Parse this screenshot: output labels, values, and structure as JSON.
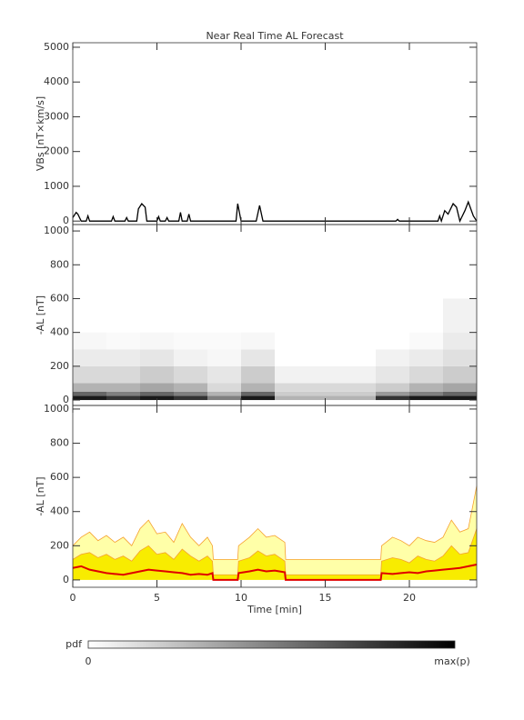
{
  "chart_data": [
    {
      "type": "line",
      "title": "Near Real Time AL Forecast",
      "y_label": "VBs [nT×km/s]",
      "xlim": [
        0,
        24
      ],
      "ylim": [
        -100,
        5130
      ],
      "yticks": [
        0,
        1000,
        2000,
        3000,
        4000,
        5000
      ],
      "x": [
        0,
        0.2,
        0.3,
        0.5,
        0.8,
        0.9,
        1.0,
        2.3,
        2.4,
        2.5,
        3.1,
        3.2,
        3.3,
        3.8,
        3.9,
        4.1,
        4.3,
        4.4,
        5.0,
        5.1,
        5.2,
        5.5,
        5.6,
        5.7,
        6.3,
        6.4,
        6.5,
        6.8,
        6.9,
        7.0,
        9.7,
        9.8,
        10.0,
        10.9,
        11.1,
        11.3,
        19.2,
        19.3,
        19.4,
        21.7,
        21.8,
        21.9,
        22.1,
        22.3,
        22.6,
        22.8,
        23.0,
        23.3,
        23.5,
        23.8,
        24
      ],
      "series": [
        {
          "color": "#000000",
          "values": [
            100,
            250,
            200,
            0,
            0,
            150,
            0,
            0,
            130,
            0,
            0,
            100,
            0,
            0,
            350,
            500,
            400,
            0,
            0,
            130,
            0,
            0,
            100,
            0,
            0,
            250,
            0,
            0,
            200,
            0,
            0,
            500,
            0,
            0,
            450,
            0,
            0,
            50,
            0,
            0,
            150,
            0,
            300,
            200,
            500,
            400,
            0,
            300,
            550,
            150,
            0
          ]
        }
      ]
    },
    {
      "type": "heatmap",
      "y_label": "-AL [nT]",
      "xlim": [
        0,
        24
      ],
      "ylim": [
        -32,
        1038
      ],
      "yticks": [
        0,
        200,
        400,
        600,
        800,
        1000
      ],
      "x_edges": [
        0,
        2,
        4,
        6,
        8,
        10,
        12,
        14,
        16,
        18,
        20,
        22,
        24
      ],
      "y_edges": [
        0,
        25,
        50,
        100,
        200,
        300,
        400,
        600
      ],
      "values": [
        [
          0.9,
          0.6,
          0.3,
          0.15,
          0.08,
          0.03,
          0
        ],
        [
          0.8,
          0.5,
          0.3,
          0.15,
          0.08,
          0.02,
          0
        ],
        [
          0.9,
          0.6,
          0.35,
          0.2,
          0.1,
          0.03,
          0
        ],
        [
          0.8,
          0.5,
          0.3,
          0.15,
          0.05,
          0.02,
          0
        ],
        [
          0.5,
          0.3,
          0.15,
          0.1,
          0.03,
          0.02,
          0
        ],
        [
          0.9,
          0.6,
          0.3,
          0.2,
          0.1,
          0.03,
          0
        ],
        [
          0.3,
          0.2,
          0.15,
          0.05,
          0,
          0,
          0
        ],
        [
          0.3,
          0.2,
          0.15,
          0.05,
          0,
          0,
          0
        ],
        [
          0.3,
          0.2,
          0.15,
          0.05,
          0,
          0,
          0
        ],
        [
          0.8,
          0.4,
          0.2,
          0.1,
          0.05,
          0,
          0
        ],
        [
          0.9,
          0.5,
          0.3,
          0.15,
          0.08,
          0.02,
          0
        ],
        [
          0.9,
          0.6,
          0.35,
          0.2,
          0.12,
          0.08,
          0.05
        ]
      ],
      "colorbar": {
        "label": "pdf",
        "min_label": "0",
        "max_label": "max(p)"
      }
    },
    {
      "type": "area",
      "y_label": "-AL [nT]",
      "x_label": "Time [min]",
      "xlim": [
        0,
        24
      ],
      "ylim": [
        -43,
        1021
      ],
      "yticks": [
        0,
        200,
        400,
        600,
        800,
        1000
      ],
      "xticks": [
        0,
        5,
        10,
        15,
        20
      ],
      "x": [
        0,
        0.5,
        1,
        1.5,
        2,
        2.5,
        3,
        3.5,
        4,
        4.5,
        5,
        5.5,
        6,
        6.5,
        7,
        7.5,
        8,
        8.3,
        8.35,
        9.8,
        9.85,
        10.5,
        11,
        11.5,
        12,
        12.6,
        12.65,
        18.3,
        18.35,
        19,
        19.5,
        20,
        20.5,
        21,
        21.5,
        22,
        22.5,
        23,
        23.5,
        24
      ],
      "series": [
        {
          "color": "#f5a030",
          "fill": "#ffffa8",
          "values": [
            200,
            250,
            280,
            230,
            260,
            220,
            250,
            200,
            300,
            350,
            270,
            280,
            220,
            330,
            250,
            200,
            250,
            200,
            120,
            120,
            200,
            250,
            300,
            250,
            260,
            220,
            120,
            120,
            200,
            250,
            230,
            200,
            250,
            230,
            220,
            250,
            350,
            280,
            300,
            550
          ]
        },
        {
          "color": "#f5a030",
          "fill": "#f8ec00",
          "values": [
            120,
            150,
            160,
            130,
            150,
            120,
            140,
            110,
            170,
            200,
            150,
            160,
            120,
            180,
            140,
            110,
            140,
            110,
            30,
            30,
            110,
            130,
            170,
            140,
            150,
            110,
            30,
            30,
            110,
            130,
            120,
            100,
            140,
            120,
            110,
            140,
            200,
            150,
            160,
            300
          ]
        },
        {
          "color": "#e00000",
          "values": [
            70,
            80,
            60,
            50,
            40,
            35,
            30,
            40,
            50,
            60,
            55,
            50,
            45,
            40,
            30,
            35,
            30,
            40,
            0,
            0,
            40,
            50,
            60,
            50,
            55,
            45,
            0,
            0,
            40,
            35,
            40,
            45,
            40,
            50,
            55,
            60,
            65,
            70,
            80,
            90
          ]
        }
      ]
    }
  ]
}
